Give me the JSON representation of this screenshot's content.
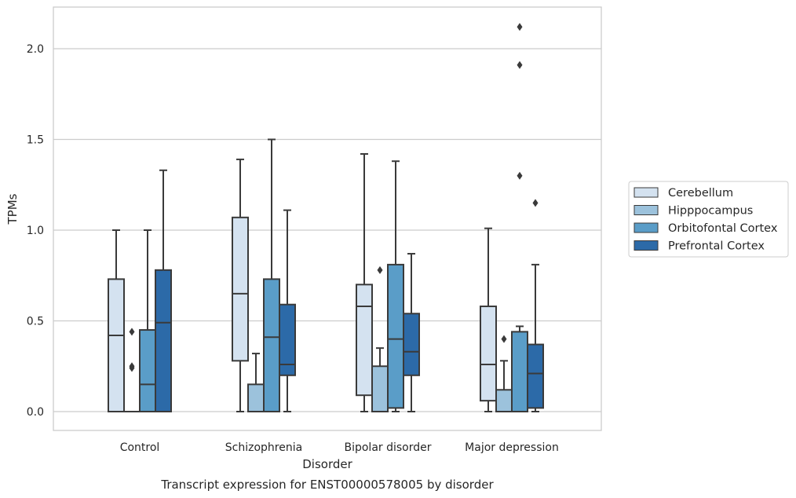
{
  "chart_data": {
    "type": "box",
    "title": "",
    "caption": "Transcript expression for ENST00000578005 by disorder",
    "xlabel": "Disorder",
    "ylabel": "TPMs",
    "ylim": [
      -0.1,
      2.25
    ],
    "yticks": [
      0.0,
      0.5,
      1.0,
      1.5,
      2.0
    ],
    "ytick_labels": [
      "0.0",
      "0.5",
      "1.0",
      "1.5",
      "2.0"
    ],
    "grid": "horizontal",
    "legend_position": "right",
    "categories": [
      "Control",
      "Schizophrenia",
      "Bipolar disorder",
      "Major depression"
    ],
    "series": [
      {
        "name": "Cerebellum",
        "color": "#d4e2f0",
        "boxes": [
          {
            "whislo": 0.0,
            "q1": 0.0,
            "med": 0.42,
            "q3": 0.73,
            "whishi": 1.0,
            "fliers": []
          },
          {
            "whislo": 0.0,
            "q1": 0.28,
            "med": 0.65,
            "q3": 1.07,
            "whishi": 1.39,
            "fliers": []
          },
          {
            "whislo": 0.0,
            "q1": 0.09,
            "med": 0.58,
            "q3": 0.7,
            "whishi": 1.42,
            "fliers": []
          },
          {
            "whislo": 0.0,
            "q1": 0.06,
            "med": 0.26,
            "q3": 0.58,
            "whishi": 1.01,
            "fliers": []
          }
        ]
      },
      {
        "name": "Hipppocampus",
        "color": "#9cc2dc",
        "boxes": [
          {
            "whislo": 0.0,
            "q1": 0.0,
            "med": 0.0,
            "q3": 0.0,
            "whishi": 0.0,
            "fliers": [
              0.44,
              0.25,
              0.24
            ]
          },
          {
            "whislo": 0.0,
            "q1": 0.0,
            "med": 0.0,
            "q3": 0.15,
            "whishi": 0.32,
            "fliers": []
          },
          {
            "whislo": 0.0,
            "q1": 0.0,
            "med": 0.0,
            "q3": 0.25,
            "whishi": 0.35,
            "fliers": [
              0.78
            ]
          },
          {
            "whislo": 0.0,
            "q1": 0.0,
            "med": 0.0,
            "q3": 0.12,
            "whishi": 0.28,
            "fliers": [
              0.4
            ]
          }
        ]
      },
      {
        "name": "Orbitofontal Cortex",
        "color": "#5a9dc8",
        "boxes": [
          {
            "whislo": 0.0,
            "q1": 0.0,
            "med": 0.15,
            "q3": 0.45,
            "whishi": 1.0,
            "fliers": []
          },
          {
            "whislo": 0.0,
            "q1": 0.0,
            "med": 0.41,
            "q3": 0.73,
            "whishi": 1.5,
            "fliers": []
          },
          {
            "whislo": 0.0,
            "q1": 0.02,
            "med": 0.4,
            "q3": 0.81,
            "whishi": 1.38,
            "fliers": []
          },
          {
            "whislo": 0.0,
            "q1": 0.0,
            "med": 0.0,
            "q3": 0.44,
            "whishi": 0.47,
            "fliers": [
              1.3,
              1.91,
              2.12
            ]
          }
        ]
      },
      {
        "name": "Prefrontal Cortex",
        "color": "#2c6aa8",
        "boxes": [
          {
            "whislo": 0.0,
            "q1": 0.0,
            "med": 0.49,
            "q3": 0.78,
            "whishi": 1.33,
            "fliers": []
          },
          {
            "whislo": 0.0,
            "q1": 0.2,
            "med": 0.26,
            "q3": 0.59,
            "whishi": 1.11,
            "fliers": []
          },
          {
            "whislo": 0.0,
            "q1": 0.2,
            "med": 0.33,
            "q3": 0.54,
            "whishi": 0.87,
            "fliers": []
          },
          {
            "whislo": 0.0,
            "q1": 0.02,
            "med": 0.21,
            "q3": 0.37,
            "whishi": 0.81,
            "fliers": [
              1.15
            ]
          }
        ]
      }
    ]
  }
}
